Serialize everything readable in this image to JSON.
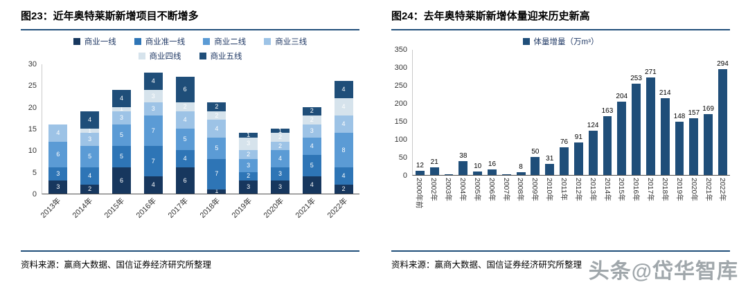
{
  "page": {
    "watermark": "头条@岱华智库"
  },
  "panels": [
    {
      "title": "图23：近年奥特莱斯新增项目不断增多",
      "source": "资料来源：赢商大数据、国信证券经济研究所整理"
    },
    {
      "title": "图24：去年奥特莱斯新增体量迎来历史新高",
      "source": "资料来源：赢商大数据、国信证券经济研究所整理"
    }
  ],
  "chart_data": [
    {
      "type": "stacked-bar",
      "title": "图23：近年奥特莱斯新增项目不断增多",
      "categories": [
        "2013年",
        "2014年",
        "2015年",
        "2016年",
        "2017年",
        "2018年",
        "2019年",
        "2020年",
        "2021年",
        "2022年"
      ],
      "series": [
        {
          "name": "商业一线",
          "color": "#17375E",
          "values": [
            3,
            2,
            6,
            4,
            6,
            1,
            3,
            3,
            4,
            2
          ]
        },
        {
          "name": "商业准一线",
          "color": "#2E75B6",
          "values": [
            3,
            4,
            5,
            7,
            4,
            7,
            2,
            3,
            5,
            4
          ]
        },
        {
          "name": "商业二线",
          "color": "#5B9BD5",
          "values": [
            6,
            5,
            5,
            7,
            5,
            5,
            3,
            4,
            4,
            8
          ]
        },
        {
          "name": "商业三线",
          "color": "#9DC3E6",
          "values": [
            4,
            3,
            3,
            3,
            4,
            4,
            2,
            2,
            3,
            4
          ]
        },
        {
          "name": "商业四线",
          "color": "#D6E3EC",
          "values": [
            0,
            1,
            1,
            3,
            2,
            2,
            3,
            2,
            2,
            4
          ]
        },
        {
          "name": "商业五线",
          "color": "#1F4E79",
          "values": [
            0,
            4,
            4,
            4,
            6,
            2,
            1,
            1,
            2,
            4
          ]
        }
      ],
      "totals": [
        16,
        19,
        24,
        28,
        27,
        21,
        14,
        15,
        20,
        26
      ],
      "ylim": [
        0,
        30
      ],
      "yticks": [
        0,
        5,
        10,
        15,
        20,
        25,
        30
      ],
      "legend_position": "top",
      "grid": false,
      "xlabel": "",
      "ylabel": ""
    },
    {
      "type": "bar",
      "title": "图24：去年奥特莱斯新增体量迎来历史新高",
      "legend": "体量增量（万m³）",
      "categories": [
        "2000年前",
        "2002年",
        "2003年",
        "2004年",
        "2005年",
        "2006年",
        "2007年",
        "2008年",
        "2009年",
        "2010年",
        "2011年",
        "2012年",
        "2013年",
        "2014年",
        "2015年",
        "2016年",
        "2017年",
        "2018年",
        "2019年",
        "2020年",
        "2021年",
        "2022年"
      ],
      "values": [
        12,
        21,
        1,
        38,
        10,
        16,
        2,
        8,
        50,
        31,
        76,
        91,
        124,
        163,
        204,
        253,
        271,
        214,
        148,
        157,
        169,
        294
      ],
      "bar_color": "#1F4E79",
      "ylim": [
        0,
        350
      ],
      "yticks": [
        0,
        50,
        100,
        150,
        200,
        250,
        300,
        350
      ],
      "label_min": 5,
      "legend_position": "top",
      "grid": false,
      "xlabel": "",
      "ylabel": ""
    }
  ]
}
